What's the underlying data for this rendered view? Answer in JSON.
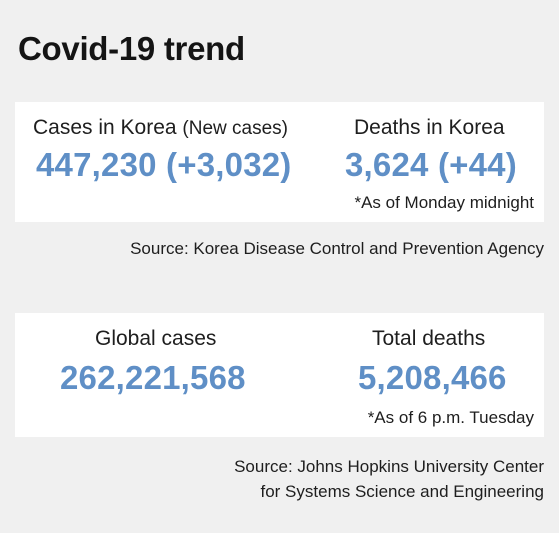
{
  "title": "Covid-19 trend",
  "korea": {
    "cases_label": "Cases in Korea",
    "cases_label_sub": "(New cases)",
    "cases_value": "447,230 (+3,032)",
    "deaths_label": "Deaths in Korea",
    "deaths_value": "3,624 (+44)",
    "note": "*As of Monday midnight",
    "source": "Source: Korea Disease Control and Prevention Agency",
    "value_color": "#5f8fc6"
  },
  "global": {
    "cases_label": "Global cases",
    "cases_value": "262,221,568",
    "deaths_label": "Total deaths",
    "deaths_value": "5,208,466",
    "note": "*As of 6 p.m. Tuesday",
    "source_line1": "Source: Johns Hopkins University Center",
    "source_line2": "for Systems Science and Engineering",
    "value_color": "#5f8fc6"
  }
}
